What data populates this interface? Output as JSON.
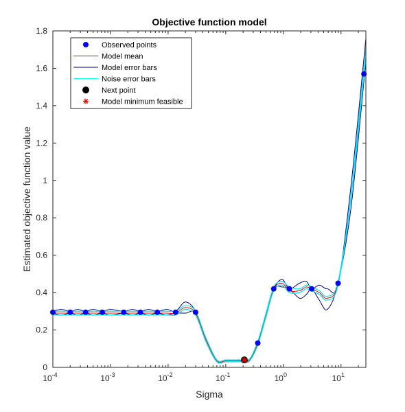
{
  "chart_data": {
    "type": "line",
    "title": "Objective function model",
    "xlabel": "Sigma",
    "ylabel": "Estimated objective function value",
    "xscale": "log",
    "xlim": [
      0.0001,
      27
    ],
    "ylim": [
      0,
      1.8
    ],
    "x_ticks": [
      0.0001,
      0.001,
      0.01,
      0.1,
      1,
      10
    ],
    "x_tick_labels": [
      {
        "base": "10",
        "exp": "-4"
      },
      {
        "base": "10",
        "exp": "-3"
      },
      {
        "base": "10",
        "exp": "-2"
      },
      {
        "base": "10",
        "exp": "-1"
      },
      {
        "base": "10",
        "exp": "0"
      },
      {
        "base": "10",
        "exp": "1"
      }
    ],
    "y_ticks": [
      0,
      0.2,
      0.4,
      0.6,
      0.8,
      1,
      1.2,
      1.4,
      1.6,
      1.8
    ],
    "y_tick_labels": [
      "0",
      "0.2",
      "0.4",
      "0.6",
      "0.8",
      "1",
      "1.2",
      "1.4",
      "1.6",
      "1.8"
    ],
    "grid": false,
    "legend_position": "top-left",
    "legend": [
      {
        "label": "Observed points",
        "color": "#0000ff",
        "marker": "dot"
      },
      {
        "label": "Model mean",
        "color": "#ff0000",
        "marker": "line"
      },
      {
        "label": "Model error bars",
        "color": "#00008b",
        "marker": "line"
      },
      {
        "label": "Noise error bars",
        "color": "#00ffff",
        "marker": "line"
      },
      {
        "label": "Next point",
        "color": "#000000",
        "marker": "dot"
      },
      {
        "label": "Model minimum feasible",
        "color": "#ff0000",
        "marker": "star"
      }
    ],
    "observed_points": {
      "x": [
        0.0001,
        0.0002,
        0.00037,
        0.00072,
        0.0017,
        0.0033,
        0.0065,
        0.0135,
        0.03,
        0.36,
        0.68,
        1.27,
        3.1,
        8.9,
        25
      ],
      "y": [
        0.295,
        0.295,
        0.295,
        0.295,
        0.295,
        0.295,
        0.295,
        0.295,
        0.295,
        0.13,
        0.42,
        0.42,
        0.42,
        0.45,
        1.57
      ]
    },
    "mean_curve": {
      "x": [
        0.0001,
        0.00014,
        0.0002,
        0.00027,
        0.00037,
        0.0005,
        0.00072,
        0.001,
        0.0017,
        0.0024,
        0.0033,
        0.0046,
        0.0065,
        0.0095,
        0.0135,
        0.02,
        0.03,
        0.045,
        0.07,
        0.1,
        0.15,
        0.2,
        0.26,
        0.36,
        0.5,
        0.68,
        0.95,
        1.27,
        1.9,
        2.5,
        3.1,
        4.2,
        5.8,
        8.9,
        15,
        27
      ],
      "y": [
        0.29,
        0.29,
        0.29,
        0.29,
        0.29,
        0.29,
        0.29,
        0.29,
        0.29,
        0.29,
        0.29,
        0.29,
        0.29,
        0.29,
        0.29,
        0.32,
        0.29,
        0.15,
        0.035,
        0.035,
        0.035,
        0.035,
        0.04,
        0.13,
        0.28,
        0.42,
        0.45,
        0.41,
        0.41,
        0.43,
        0.42,
        0.4,
        0.37,
        0.45,
        0.92,
        1.74
      ]
    },
    "model_error_bars": {
      "upper": {
        "x": [
          0.0001,
          0.00014,
          0.0002,
          0.00027,
          0.00037,
          0.0005,
          0.00072,
          0.001,
          0.0017,
          0.0024,
          0.0033,
          0.0046,
          0.0065,
          0.0095,
          0.0135,
          0.02,
          0.03,
          0.045,
          0.07,
          0.1,
          0.15,
          0.2,
          0.26,
          0.36,
          0.5,
          0.68,
          0.95,
          1.27,
          1.9,
          2.5,
          3.1,
          4.2,
          5.8,
          8.9,
          15,
          27
        ],
        "y": [
          0.3,
          0.31,
          0.3,
          0.31,
          0.3,
          0.31,
          0.3,
          0.31,
          0.3,
          0.31,
          0.3,
          0.31,
          0.3,
          0.31,
          0.3,
          0.35,
          0.3,
          0.16,
          0.04,
          0.04,
          0.04,
          0.04,
          0.045,
          0.13,
          0.29,
          0.42,
          0.47,
          0.42,
          0.45,
          0.46,
          0.42,
          0.44,
          0.42,
          0.45,
          0.98,
          1.76
        ]
      },
      "lower": {
        "x": [
          0.0001,
          0.00014,
          0.0002,
          0.00027,
          0.00037,
          0.0005,
          0.00072,
          0.001,
          0.0017,
          0.0024,
          0.0033,
          0.0046,
          0.0065,
          0.0095,
          0.0135,
          0.02,
          0.03,
          0.045,
          0.07,
          0.1,
          0.15,
          0.2,
          0.26,
          0.36,
          0.5,
          0.68,
          0.95,
          1.27,
          1.9,
          2.5,
          3.1,
          4.2,
          5.8,
          8.9,
          15,
          27
        ],
        "y": [
          0.29,
          0.28,
          0.29,
          0.28,
          0.29,
          0.28,
          0.29,
          0.28,
          0.29,
          0.28,
          0.29,
          0.28,
          0.29,
          0.28,
          0.29,
          0.29,
          0.29,
          0.14,
          0.03,
          0.03,
          0.03,
          0.03,
          0.035,
          0.13,
          0.27,
          0.42,
          0.43,
          0.42,
          0.37,
          0.39,
          0.42,
          0.36,
          0.31,
          0.45,
          0.86,
          1.64
        ]
      }
    },
    "noise_error_bars": {
      "upper": {
        "x": [
          0.0001,
          0.00014,
          0.0002,
          0.00027,
          0.00037,
          0.0005,
          0.00072,
          0.001,
          0.0017,
          0.0024,
          0.0033,
          0.0046,
          0.0065,
          0.0095,
          0.0135,
          0.02,
          0.03,
          0.045,
          0.07,
          0.1,
          0.15,
          0.2,
          0.26,
          0.36,
          0.5,
          0.68,
          0.95,
          1.27,
          1.9,
          2.5,
          3.1,
          4.2,
          5.8,
          8.9,
          15,
          27
        ],
        "y": [
          0.3,
          0.3,
          0.3,
          0.3,
          0.3,
          0.3,
          0.3,
          0.3,
          0.3,
          0.3,
          0.3,
          0.3,
          0.3,
          0.3,
          0.3,
          0.33,
          0.3,
          0.16,
          0.04,
          0.04,
          0.04,
          0.04,
          0.045,
          0.14,
          0.29,
          0.43,
          0.46,
          0.43,
          0.42,
          0.44,
          0.43,
          0.41,
          0.38,
          0.46,
          0.93,
          1.72
        ]
      },
      "lower": {
        "x": [
          0.0001,
          0.00014,
          0.0002,
          0.00027,
          0.00037,
          0.0005,
          0.00072,
          0.001,
          0.0017,
          0.0024,
          0.0033,
          0.0046,
          0.0065,
          0.0095,
          0.0135,
          0.02,
          0.03,
          0.045,
          0.07,
          0.1,
          0.15,
          0.2,
          0.26,
          0.36,
          0.5,
          0.68,
          0.95,
          1.27,
          1.9,
          2.5,
          3.1,
          4.2,
          5.8,
          8.9,
          15,
          27
        ],
        "y": [
          0.28,
          0.28,
          0.28,
          0.28,
          0.28,
          0.28,
          0.28,
          0.28,
          0.28,
          0.28,
          0.28,
          0.28,
          0.28,
          0.28,
          0.28,
          0.31,
          0.28,
          0.14,
          0.03,
          0.03,
          0.03,
          0.03,
          0.035,
          0.12,
          0.27,
          0.41,
          0.44,
          0.4,
          0.4,
          0.42,
          0.41,
          0.39,
          0.36,
          0.44,
          0.91,
          1.66
        ]
      }
    },
    "next_point": {
      "x": 0.21,
      "y": 0.04
    },
    "model_minimum_feasible": {
      "x": 0.21,
      "y": 0.04
    }
  }
}
